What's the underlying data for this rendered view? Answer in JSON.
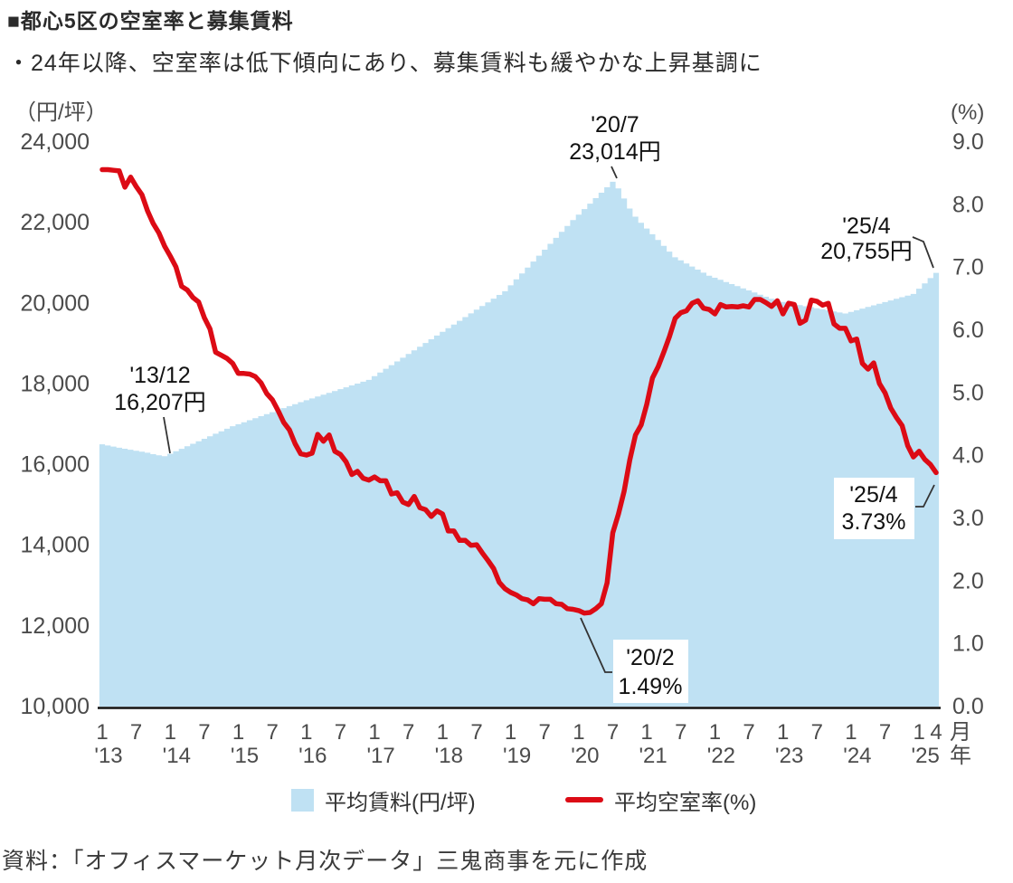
{
  "header": {
    "title": "■都心5区の空室率と募集賃料",
    "subtitle": "・24年以降、空室率は低下傾向にあり、募集賃料も緩やかな上昇基調に"
  },
  "source": "資料：「オフィスマーケット月次データ」三鬼商事を元に作成",
  "colors": {
    "area": "#bfe1f3",
    "line": "#dc0b15",
    "axis": "#111111",
    "leader": "#333333",
    "annotation_box": "#ffffff",
    "tick_text": "#4b4b4b",
    "text": "#2b2b2b"
  },
  "legend": {
    "items": [
      {
        "label": "平均賃料(円/坪)",
        "swatch": "area"
      },
      {
        "label": "平均空室率(%)",
        "swatch": "line"
      }
    ]
  },
  "chart_data": {
    "type": "combo",
    "x_start": "2013-01",
    "x_end": "2025-04",
    "x_frequency": "monthly",
    "grid": false,
    "legend_position": "bottom",
    "left_axis": {
      "unit": "（円/坪）",
      "min": 10000,
      "max": 24000,
      "tick_labels": [
        "24,000",
        "22,000",
        "20,000",
        "18,000",
        "16,000",
        "14,000",
        "12,000",
        "10,000"
      ]
    },
    "right_axis": {
      "unit": "(%)",
      "min": 0,
      "max": 9,
      "tick_labels": [
        "9.0",
        "8.0",
        "7.0",
        "6.0",
        "5.0",
        "4.0",
        "3.0",
        "2.0",
        "1.0",
        "0.0"
      ]
    },
    "x_axis": {
      "month_unit": "月",
      "year_unit": "年",
      "month_ticks": [
        [
          0,
          "1"
        ],
        [
          6,
          "7"
        ],
        [
          12,
          "1"
        ],
        [
          18,
          "7"
        ],
        [
          24,
          "1"
        ],
        [
          30,
          "7"
        ],
        [
          36,
          "1"
        ],
        [
          42,
          "7"
        ],
        [
          48,
          "1"
        ],
        [
          54,
          "7"
        ],
        [
          60,
          "1"
        ],
        [
          66,
          "7"
        ],
        [
          72,
          "1"
        ],
        [
          78,
          "7"
        ],
        [
          84,
          "1"
        ],
        [
          90,
          "7"
        ],
        [
          96,
          "1"
        ],
        [
          102,
          "7"
        ],
        [
          108,
          "1"
        ],
        [
          114,
          "7"
        ],
        [
          120,
          "1"
        ],
        [
          126,
          "7"
        ],
        [
          132,
          "1"
        ],
        [
          138,
          "7"
        ],
        [
          144,
          "1"
        ],
        [
          147,
          "4"
        ]
      ],
      "year_ticks": [
        [
          0,
          "'13"
        ],
        [
          12,
          "'14"
        ],
        [
          24,
          "'15"
        ],
        [
          36,
          "'16"
        ],
        [
          48,
          "'17"
        ],
        [
          60,
          "'18"
        ],
        [
          72,
          "'19"
        ],
        [
          84,
          "'20"
        ],
        [
          96,
          "'21"
        ],
        [
          108,
          "'22"
        ],
        [
          120,
          "'23"
        ],
        [
          132,
          "'24"
        ],
        [
          144,
          "'25"
        ]
      ]
    },
    "series": [
      {
        "name": "平均賃料(円/坪)",
        "type": "area",
        "axis": "left",
        "values": [
          16504,
          16474,
          16447,
          16420,
          16395,
          16370,
          16345,
          16320,
          16295,
          16260,
          16230,
          16207,
          16269,
          16331,
          16393,
          16455,
          16517,
          16580,
          16642,
          16704,
          16766,
          16828,
          16891,
          16953,
          17003,
          17052,
          17102,
          17152,
          17202,
          17252,
          17301,
          17351,
          17401,
          17450,
          17500,
          17550,
          17596,
          17642,
          17688,
          17734,
          17780,
          17826,
          17872,
          17918,
          17964,
          18010,
          18056,
          18102,
          18194,
          18285,
          18377,
          18468,
          18560,
          18651,
          18743,
          18834,
          18926,
          19017,
          19109,
          19200,
          19292,
          19383,
          19475,
          19567,
          19658,
          19750,
          19842,
          19933,
          20025,
          20117,
          20208,
          20300,
          20447,
          20594,
          20742,
          20889,
          21036,
          21183,
          21330,
          21477,
          21625,
          21772,
          21919,
          22066,
          22201,
          22337,
          22472,
          22608,
          22743,
          22879,
          23014,
          22850,
          22600,
          22350,
          22150,
          21999,
          21856,
          21713,
          21570,
          21427,
          21284,
          21141,
          21065,
          20989,
          20913,
          20837,
          20761,
          20686,
          20634,
          20582,
          20529,
          20477,
          20425,
          20373,
          20320,
          20268,
          20216,
          20164,
          20111,
          20059,
          20033,
          20007,
          19981,
          19955,
          19929,
          19903,
          19877,
          19852,
          19826,
          19800,
          19774,
          19748,
          19788,
          19829,
          19869,
          19909,
          19950,
          19990,
          20031,
          20071,
          20112,
          20152,
          20193,
          20233,
          20364,
          20494,
          20625,
          20755
        ]
      },
      {
        "name": "平均空室率(%)",
        "type": "line",
        "axis": "right",
        "values": [
          8.56,
          8.56,
          8.55,
          8.54,
          8.28,
          8.44,
          8.29,
          8.16,
          7.9,
          7.7,
          7.55,
          7.34,
          7.18,
          7.01,
          6.7,
          6.64,
          6.52,
          6.45,
          6.2,
          6.02,
          5.65,
          5.6,
          5.55,
          5.47,
          5.31,
          5.31,
          5.3,
          5.26,
          5.16,
          4.99,
          4.89,
          4.72,
          4.53,
          4.41,
          4.19,
          4.03,
          4.01,
          4.04,
          4.34,
          4.23,
          4.33,
          4.07,
          4.02,
          3.9,
          3.7,
          3.75,
          3.64,
          3.61,
          3.66,
          3.6,
          3.6,
          3.39,
          3.41,
          3.26,
          3.22,
          3.35,
          3.17,
          3.14,
          3.03,
          3.12,
          3.07,
          2.8,
          2.8,
          2.65,
          2.65,
          2.57,
          2.58,
          2.45,
          2.33,
          2.2,
          1.98,
          1.88,
          1.82,
          1.78,
          1.72,
          1.7,
          1.64,
          1.72,
          1.71,
          1.71,
          1.64,
          1.63,
          1.56,
          1.55,
          1.53,
          1.49,
          1.5,
          1.56,
          1.64,
          1.97,
          2.77,
          3.07,
          3.43,
          3.93,
          4.33,
          4.49,
          4.82,
          5.24,
          5.42,
          5.65,
          5.9,
          6.19,
          6.28,
          6.31,
          6.43,
          6.47,
          6.35,
          6.33,
          6.26,
          6.41,
          6.37,
          6.38,
          6.37,
          6.39,
          6.37,
          6.49,
          6.49,
          6.44,
          6.38,
          6.47,
          6.26,
          6.43,
          6.41,
          6.11,
          6.16,
          6.48,
          6.46,
          6.4,
          6.43,
          6.1,
          6.03,
          6.03,
          5.83,
          5.86,
          5.47,
          5.38,
          5.48,
          5.15,
          5.0,
          4.76,
          4.61,
          4.48,
          4.16,
          3.98,
          4.07,
          3.94,
          3.86,
          3.73
        ]
      }
    ],
    "annotations": [
      {
        "id": "rent-1312",
        "series": "rent",
        "point": "'13/12",
        "lines": [
          "'13/12",
          "16,207円"
        ],
        "box": false
      },
      {
        "id": "rent-2007",
        "series": "rent",
        "point": "'20/7",
        "lines": [
          "'20/7",
          "23,014円"
        ],
        "box": false
      },
      {
        "id": "rent-2504",
        "series": "rent",
        "point": "'25/4",
        "lines": [
          "'25/4",
          "20,755円"
        ],
        "box": false
      },
      {
        "id": "vac-2002",
        "series": "vacancy",
        "point": "'20/2",
        "lines": [
          "'20/2",
          "1.49%"
        ],
        "box": true
      },
      {
        "id": "vac-2504",
        "series": "vacancy",
        "point": "'25/4",
        "lines": [
          "'25/4",
          "3.73%"
        ],
        "box": true
      }
    ]
  }
}
